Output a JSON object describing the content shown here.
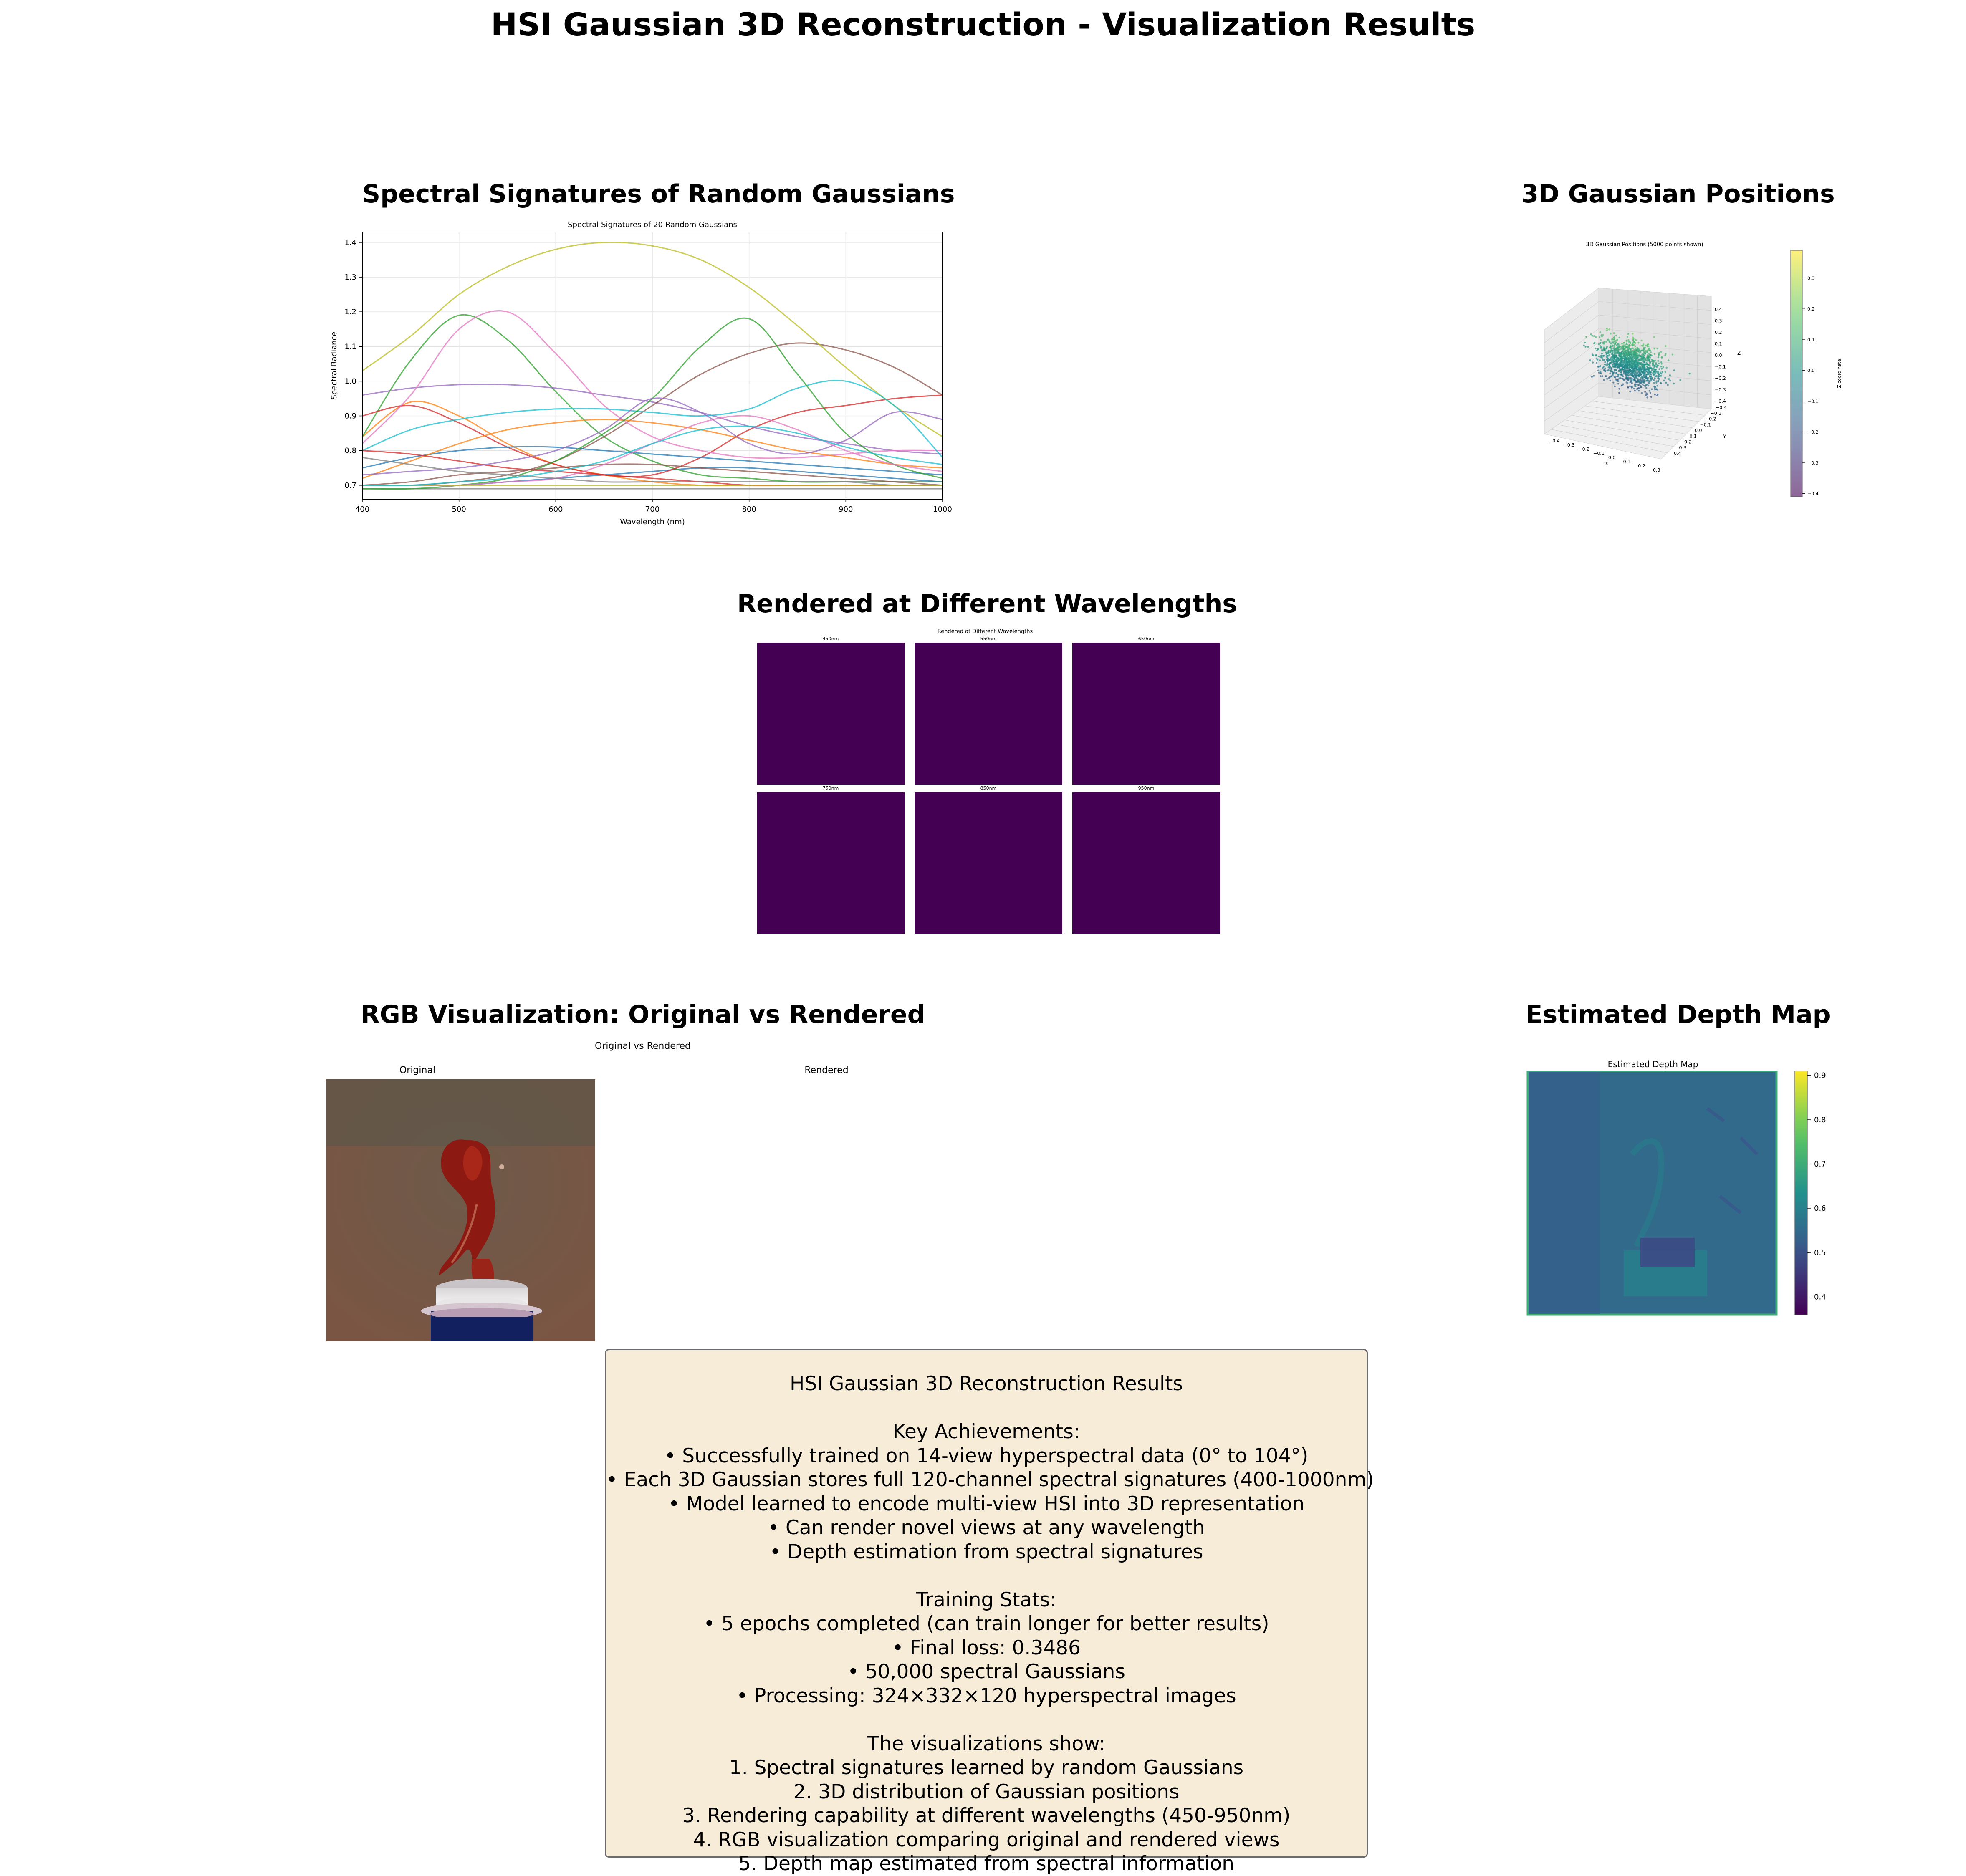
{
  "title": "HSI Gaussian 3D Reconstruction - Visualization Results",
  "panels": {
    "spectral": {
      "title": "Spectral Signatures of Random Gaussians",
      "chart_data": {
        "type": "line",
        "title": "Spectral Signatures of 20 Random Gaussians",
        "xlabel": "Wavelength (nm)",
        "ylabel": "Spectral Radiance",
        "xlim": [
          400,
          1000
        ],
        "ylim": [
          0.66,
          1.43
        ],
        "x_ticks": [
          "400",
          "500",
          "600",
          "700",
          "800",
          "900",
          "1000"
        ],
        "y_ticks": [
          "0.7",
          "0.8",
          "0.9",
          "1.0",
          "1.1",
          "1.2",
          "1.3",
          "1.4"
        ],
        "grid": true,
        "x": [
          400,
          450,
          500,
          550,
          600,
          650,
          700,
          750,
          800,
          850,
          900,
          950,
          1000
        ],
        "series": [
          {
            "color": "#1f77b4",
            "values": [
              0.7,
              0.7,
              0.7,
              0.71,
              0.72,
              0.73,
              0.74,
              0.75,
              0.75,
              0.74,
              0.73,
              0.72,
              0.71
            ]
          },
          {
            "color": "#ff7f0e",
            "values": [
              0.84,
              0.94,
              0.9,
              0.82,
              0.76,
              0.73,
              0.71,
              0.7,
              0.7,
              0.7,
              0.7,
              0.7,
              0.7
            ]
          },
          {
            "color": "#2ca02c",
            "values": [
              0.84,
              1.06,
              1.19,
              1.12,
              0.97,
              0.84,
              0.77,
              0.73,
              0.72,
              0.71,
              0.71,
              0.71,
              0.71
            ]
          },
          {
            "color": "#d62728",
            "values": [
              0.9,
              0.93,
              0.88,
              0.81,
              0.76,
              0.73,
              0.73,
              0.78,
              0.86,
              0.91,
              0.93,
              0.95,
              0.96
            ]
          },
          {
            "color": "#9467bd",
            "values": [
              0.96,
              0.98,
              0.99,
              0.99,
              0.98,
              0.96,
              0.94,
              0.91,
              0.87,
              0.84,
              0.82,
              0.8,
              0.79
            ]
          },
          {
            "color": "#8c564b",
            "values": [
              0.7,
              0.7,
              0.71,
              0.73,
              0.77,
              0.84,
              0.93,
              1.02,
              1.08,
              1.11,
              1.09,
              1.04,
              0.96
            ]
          },
          {
            "color": "#e377c2",
            "values": [
              0.82,
              0.96,
              1.15,
              1.2,
              1.08,
              0.93,
              0.84,
              0.8,
              0.78,
              0.78,
              0.79,
              0.8,
              0.8
            ]
          },
          {
            "color": "#7f7f7f",
            "values": [
              0.69,
              0.69,
              0.69,
              0.69,
              0.69,
              0.69,
              0.69,
              0.69,
              0.69,
              0.69,
              0.69,
              0.69,
              0.69
            ]
          },
          {
            "color": "#bcbd22",
            "values": [
              1.03,
              1.13,
              1.25,
              1.33,
              1.38,
              1.4,
              1.39,
              1.35,
              1.27,
              1.16,
              1.04,
              0.93,
              0.84
            ]
          },
          {
            "color": "#17becf",
            "values": [
              0.8,
              0.86,
              0.89,
              0.91,
              0.92,
              0.92,
              0.91,
              0.9,
              0.92,
              0.98,
              1.0,
              0.93,
              0.78
            ]
          },
          {
            "color": "#1f77b4",
            "values": [
              0.75,
              0.78,
              0.8,
              0.81,
              0.81,
              0.8,
              0.79,
              0.78,
              0.77,
              0.76,
              0.75,
              0.74,
              0.73
            ]
          },
          {
            "color": "#ff7f0e",
            "values": [
              0.72,
              0.77,
              0.82,
              0.86,
              0.88,
              0.89,
              0.88,
              0.86,
              0.83,
              0.8,
              0.78,
              0.76,
              0.75
            ]
          },
          {
            "color": "#2ca02c",
            "values": [
              0.69,
              0.69,
              0.7,
              0.72,
              0.77,
              0.85,
              0.95,
              1.1,
              1.18,
              1.02,
              0.85,
              0.76,
              0.72
            ]
          },
          {
            "color": "#d62728",
            "values": [
              0.8,
              0.79,
              0.77,
              0.75,
              0.74,
              0.73,
              0.72,
              0.71,
              0.7,
              0.7,
              0.7,
              0.7,
              0.7
            ]
          },
          {
            "color": "#9467bd",
            "values": [
              0.73,
              0.74,
              0.75,
              0.77,
              0.8,
              0.86,
              0.95,
              0.91,
              0.82,
              0.79,
              0.83,
              0.91,
              0.89
            ]
          },
          {
            "color": "#8c564b",
            "values": [
              0.7,
              0.71,
              0.73,
              0.74,
              0.75,
              0.76,
              0.76,
              0.75,
              0.74,
              0.73,
              0.72,
              0.71,
              0.7
            ]
          },
          {
            "color": "#e377c2",
            "values": [
              0.7,
              0.7,
              0.7,
              0.71,
              0.72,
              0.76,
              0.82,
              0.88,
              0.9,
              0.86,
              0.8,
              0.76,
              0.74
            ]
          },
          {
            "color": "#7f7f7f",
            "values": [
              0.78,
              0.76,
              0.74,
              0.73,
              0.72,
              0.71,
              0.71,
              0.71,
              0.71,
              0.71,
              0.71,
              0.7,
              0.7
            ]
          },
          {
            "color": "#bcbd22",
            "values": [
              0.7,
              0.7,
              0.7,
              0.7,
              0.7,
              0.7,
              0.7,
              0.7,
              0.7,
              0.7,
              0.7,
              0.7,
              0.7
            ]
          },
          {
            "color": "#17becf",
            "values": [
              0.7,
              0.7,
              0.71,
              0.72,
              0.74,
              0.77,
              0.82,
              0.86,
              0.87,
              0.85,
              0.81,
              0.78,
              0.76
            ]
          }
        ]
      }
    },
    "positions": {
      "title": "3D Gaussian Positions",
      "chart_data": {
        "type": "scatter",
        "title": "3D Gaussian Positions (5000 points shown)",
        "xlabel": "X",
        "ylabel": "Y",
        "zlabel": "Z",
        "colorbar_label": "Z coordinate",
        "colormap": "viridis",
        "points_shown": 5000,
        "x_ticks": [
          "−0.4",
          "−0.3",
          "−0.2",
          "−0.1",
          "0.0",
          "0.1",
          "0.2",
          "0.3"
        ],
        "y_ticks": [
          "−0.4",
          "−0.3",
          "−0.2",
          "−0.1",
          "0.0",
          "0.1",
          "0.2",
          "0.3",
          "0.4"
        ],
        "z_ticks": [
          "0.4",
          "0.3",
          "0.2",
          "0.1",
          "0.0",
          "−0.1",
          "−0.2",
          "−0.3",
          "−0.4"
        ],
        "colorbar_ticks": [
          "0.3",
          "0.2",
          "0.1",
          "0.0",
          "−0.1",
          "−0.2",
          "−0.3",
          "−0.4"
        ],
        "colorbar_range": [
          -0.41,
          0.39
        ]
      }
    },
    "wavelengths": {
      "title": "Rendered at Different Wavelengths",
      "subtitle": "Rendered at Different Wavelengths",
      "tile_color": "#440154",
      "tiles": [
        "450nm",
        "550nm",
        "650nm",
        "750nm",
        "850nm",
        "950nm"
      ]
    },
    "rgb": {
      "title": "RGB Visualization: Original vs Rendered",
      "subtitle": "Original vs Rendered",
      "left_label": "Original",
      "right_label": "Rendered"
    },
    "depth": {
      "title": "Estimated Depth Map",
      "subtitle": "Estimated Depth Map",
      "colorbar_ticks": [
        "0.9",
        "0.8",
        "0.7",
        "0.6",
        "0.5",
        "0.4"
      ],
      "colorbar_range": [
        0.36,
        0.91
      ],
      "dominant_value": 0.55
    }
  },
  "summary": {
    "lines": [
      "HSI Gaussian 3D Reconstruction Results",
      "",
      "Key Achievements:",
      "• Successfully trained on 14-view hyperspectral data (0° to 104°)",
      "• Each 3D Gaussian stores full 120-channel spectral signatures (400-1000nm)",
      "• Model learned to encode multi-view HSI into 3D representation",
      "• Can render novel views at any wavelength",
      "• Depth estimation from spectral signatures",
      "",
      "Training Stats:",
      "• 5 epochs completed (can train longer for better results)",
      "• Final loss: 0.3486",
      "• 50,000 spectral Gaussians",
      "• Processing: 324×332×120 hyperspectral images",
      "",
      "The visualizations show:",
      "1. Spectral signatures learned by random Gaussians",
      "2. 3D distribution of Gaussian positions",
      "3. Rendering capability at different wavelengths (450-950nm)",
      "4. RGB visualization comparing original and rendered views",
      "5. Depth map estimated from spectral information"
    ]
  }
}
